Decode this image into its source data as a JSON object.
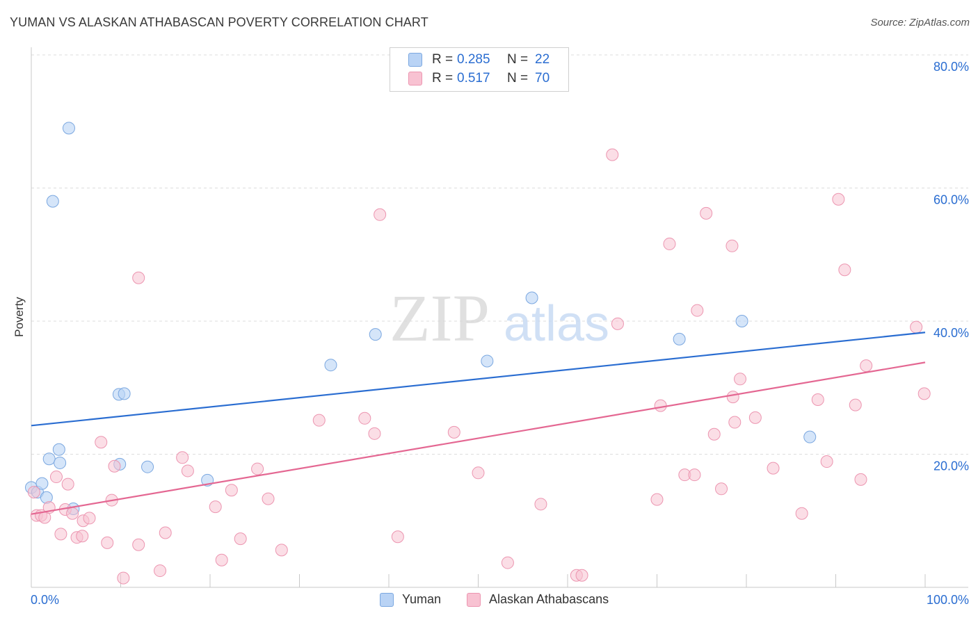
{
  "title": "YUMAN VS ALASKAN ATHABASCAN POVERTY CORRELATION CHART",
  "source": "Source: ZipAtlas.com",
  "watermark": {
    "zip": "ZIP",
    "atlas": "atlas"
  },
  "legend": {
    "rows": [
      {
        "r_label": "R =",
        "r_value": "0.285",
        "n_label": "N =",
        "n_value": "22"
      },
      {
        "r_label": "R =",
        "r_value": "0.517",
        "n_label": "N =",
        "n_value": "70"
      }
    ]
  },
  "bottom_legend": {
    "series1": "Yuman",
    "series2": "Alaskan Athabascans"
  },
  "colors": {
    "yuman_fill": "#b9d3f5",
    "yuman_stroke": "#7aa7e0",
    "yuman_line": "#2a6dd1",
    "alaskan_fill": "#f8c2d2",
    "alaskan_stroke": "#ec95b0",
    "alaskan_line": "#e46792",
    "axis_text": "#2a6dd1",
    "grid": "#dddddd"
  },
  "chart_data": {
    "type": "scatter",
    "title": "YUMAN VS ALASKAN ATHABASCAN POVERTY CORRELATION CHART",
    "xlabel": "",
    "ylabel": "Poverty",
    "xlim": [
      0,
      100
    ],
    "ylim": [
      0,
      80
    ],
    "x_tick_labels": {
      "left": "0.0%",
      "right": "100.0%"
    },
    "y_ticks": [
      {
        "value": 20,
        "label": "20.0%"
      },
      {
        "value": 40,
        "label": "40.0%"
      },
      {
        "value": 60,
        "label": "60.0%"
      },
      {
        "value": 80,
        "label": "80.0%"
      }
    ],
    "grid": true,
    "series": [
      {
        "name": "Yuman",
        "R": 0.285,
        "N": 22,
        "trend": {
          "x": [
            0,
            100
          ],
          "y": [
            24.3,
            38.3
          ]
        },
        "points": [
          [
            0.0,
            15.0
          ],
          [
            0.7,
            14.3
          ],
          [
            1.2,
            15.6
          ],
          [
            1.7,
            13.5
          ],
          [
            2.0,
            19.3
          ],
          [
            2.4,
            58.0
          ],
          [
            3.1,
            20.7
          ],
          [
            3.2,
            18.7
          ],
          [
            4.2,
            69.0
          ],
          [
            4.7,
            11.8
          ],
          [
            9.9,
            18.5
          ],
          [
            9.8,
            29.0
          ],
          [
            10.4,
            29.1
          ],
          [
            13.0,
            18.1
          ],
          [
            19.7,
            16.1
          ],
          [
            33.5,
            33.4
          ],
          [
            38.5,
            38.0
          ],
          [
            51.0,
            34.0
          ],
          [
            56.0,
            43.5
          ],
          [
            72.5,
            37.3
          ],
          [
            79.5,
            40.0
          ],
          [
            87.1,
            22.6
          ]
        ]
      },
      {
        "name": "Alaskan Athabascans",
        "R": 0.517,
        "N": 70,
        "trend": {
          "x": [
            0,
            100
          ],
          "y": [
            11.0,
            33.8
          ]
        },
        "points": [
          [
            0.3,
            14.3
          ],
          [
            0.6,
            10.8
          ],
          [
            1.1,
            10.8
          ],
          [
            1.5,
            10.5
          ],
          [
            2.0,
            12.0
          ],
          [
            2.8,
            16.6
          ],
          [
            3.3,
            8.0
          ],
          [
            4.1,
            15.5
          ],
          [
            3.8,
            11.7
          ],
          [
            4.6,
            11.1
          ],
          [
            5.1,
            7.5
          ],
          [
            5.7,
            7.7
          ],
          [
            5.8,
            10.0
          ],
          [
            6.5,
            10.4
          ],
          [
            7.8,
            21.8
          ],
          [
            8.5,
            6.7
          ],
          [
            9.0,
            13.1
          ],
          [
            9.3,
            18.2
          ],
          [
            10.3,
            1.4
          ],
          [
            12.0,
            46.5
          ],
          [
            12.0,
            6.4
          ],
          [
            14.4,
            2.5
          ],
          [
            15.0,
            8.2
          ],
          [
            16.9,
            19.5
          ],
          [
            17.5,
            17.5
          ],
          [
            20.6,
            12.1
          ],
          [
            21.3,
            4.1
          ],
          [
            22.4,
            14.6
          ],
          [
            23.4,
            7.3
          ],
          [
            25.3,
            17.8
          ],
          [
            26.5,
            13.3
          ],
          [
            28.0,
            5.6
          ],
          [
            32.2,
            25.1
          ],
          [
            37.3,
            25.4
          ],
          [
            38.4,
            23.1
          ],
          [
            39.0,
            56.0
          ],
          [
            41.0,
            7.6
          ],
          [
            50.0,
            17.2
          ],
          [
            53.3,
            3.7
          ],
          [
            57.0,
            12.5
          ],
          [
            61.0,
            1.8
          ],
          [
            61.6,
            1.8
          ],
          [
            65.0,
            65.0
          ],
          [
            65.6,
            39.6
          ],
          [
            70.0,
            13.2
          ],
          [
            70.4,
            27.3
          ],
          [
            71.4,
            51.6
          ],
          [
            73.1,
            16.9
          ],
          [
            74.2,
            16.9
          ],
          [
            74.5,
            41.6
          ],
          [
            75.5,
            56.2
          ],
          [
            76.4,
            23.0
          ],
          [
            77.2,
            14.8
          ],
          [
            78.5,
            28.6
          ],
          [
            78.4,
            51.3
          ],
          [
            78.7,
            24.8
          ],
          [
            79.3,
            31.3
          ],
          [
            81.0,
            25.5
          ],
          [
            83.0,
            17.9
          ],
          [
            86.2,
            11.1
          ],
          [
            88.0,
            28.2
          ],
          [
            89.0,
            18.9
          ],
          [
            90.3,
            58.3
          ],
          [
            91.0,
            47.7
          ],
          [
            92.2,
            27.4
          ],
          [
            92.8,
            16.2
          ],
          [
            93.4,
            33.3
          ],
          [
            99.0,
            39.1
          ],
          [
            99.9,
            29.1
          ],
          [
            47.3,
            23.3
          ]
        ]
      }
    ]
  }
}
